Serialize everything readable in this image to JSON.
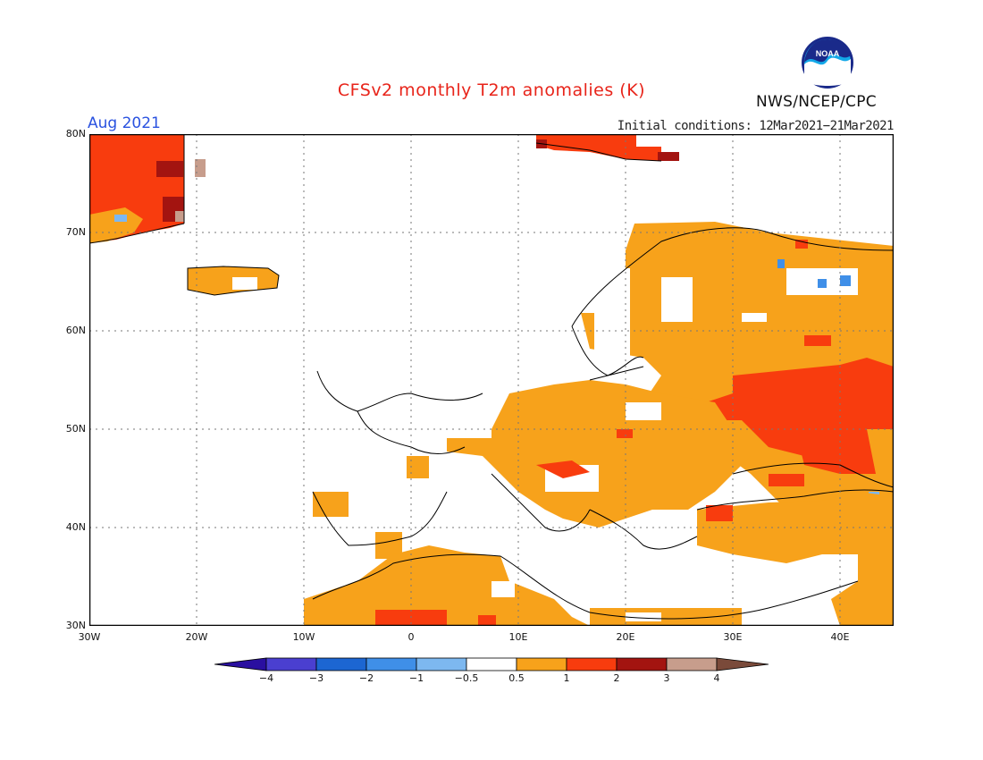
{
  "header": {
    "title": "CFSv2 monthly T2m anomalies (K)",
    "month": "Aug 2021",
    "initial_conditions": "Initial conditions: 12Mar2021−21Mar2021",
    "agency": "NWS/NCEP/CPC",
    "logo_text": "NOAA"
  },
  "axes": {
    "lat_labels": [
      "80N",
      "70N",
      "60N",
      "50N",
      "40N",
      "30N"
    ],
    "lon_labels": [
      "30W",
      "20W",
      "10W",
      "0",
      "10E",
      "20E",
      "30E",
      "40E"
    ],
    "lon_range": [
      -30,
      45
    ],
    "lat_range": [
      30,
      80
    ],
    "grid": "dotted"
  },
  "legend": {
    "ticks": [
      "−4",
      "−3",
      "−2",
      "−1",
      "−0.5",
      "0.5",
      "1",
      "2",
      "3",
      "4"
    ],
    "colors": [
      "#2a0fa0",
      "#4a3fd0",
      "#1c66d2",
      "#3f8fe8",
      "#7db8f0",
      "#ffffff",
      "#f7a21b",
      "#f83c0e",
      "#a31410",
      "#c79d8c",
      "#7a4a3a"
    ]
  },
  "map_regions": {
    "greenland_east": "red",
    "iceland": "orange",
    "svalbard": "red",
    "scandinavia_russia_north": "orange",
    "eastern_europe_russia": "red",
    "central_europe": "orange",
    "north_africa": "orange",
    "anatolia": "orange"
  }
}
